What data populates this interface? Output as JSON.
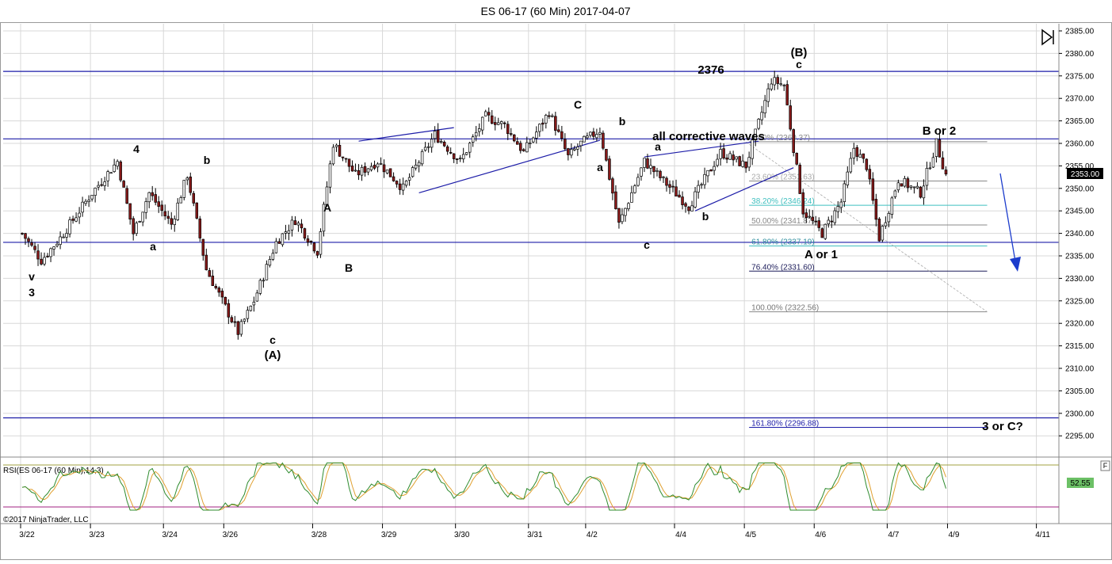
{
  "title": "ES 06-17 (60 Min)  2017-04-07",
  "last_price": "2353.00",
  "copyright": "©2017 NinjaTrader, LLC",
  "rsi_label": "RSI(ES 06-17 (60 Min),14,3)",
  "rsi_value": "52.55",
  "f_button": "F",
  "colors": {
    "up_candle": "#ffffff",
    "down_candle": "#8b1a1a",
    "trend_lines": "#1c1ca8",
    "rsi_line": "#2e8b2e",
    "rsi_signal": "#e0a030",
    "fib_cyan": "#3fbfbf",
    "rsi_upper": "#a0a040",
    "rsi_lower": "#a02080"
  },
  "chart_data": {
    "type": "candlestick",
    "timeframe": "60 Min",
    "ylim": [
      2290,
      2386
    ],
    "y_ticks": [
      "2385.00",
      "2380.00",
      "2375.00",
      "2370.00",
      "2365.00",
      "2360.00",
      "2355.00",
      "2350.00",
      "2345.00",
      "2340.00",
      "2335.00",
      "2330.00",
      "2325.00",
      "2320.00",
      "2315.00",
      "2310.00",
      "2305.00",
      "2300.00",
      "2295.00"
    ],
    "x_ticks": [
      {
        "label": "3/22",
        "i": 0
      },
      {
        "label": "3/23",
        "i": 22
      },
      {
        "label": "3/24",
        "i": 45
      },
      {
        "label": "3/26",
        "i": 64
      },
      {
        "label": "3/28",
        "i": 92
      },
      {
        "label": "3/29",
        "i": 114
      },
      {
        "label": "3/30",
        "i": 137
      },
      {
        "label": "3/31",
        "i": 160
      },
      {
        "label": "4/2",
        "i": 178
      },
      {
        "label": "4/4",
        "i": 206
      },
      {
        "label": "4/5",
        "i": 228
      },
      {
        "label": "4/6",
        "i": 250
      },
      {
        "label": "4/7",
        "i": 273
      },
      {
        "label": "4/9",
        "i": 292
      },
      {
        "label": "4/11",
        "i": 320
      }
    ],
    "anchors": [
      {
        "i": 0,
        "p": 2340
      },
      {
        "i": 6,
        "p": 2334
      },
      {
        "i": 12,
        "p": 2339
      },
      {
        "i": 22,
        "p": 2349
      },
      {
        "i": 30,
        "p": 2356
      },
      {
        "i": 35,
        "p": 2340
      },
      {
        "i": 40,
        "p": 2349
      },
      {
        "i": 47,
        "p": 2342
      },
      {
        "i": 52,
        "p": 2353
      },
      {
        "i": 58,
        "p": 2332
      },
      {
        "i": 63,
        "p": 2325
      },
      {
        "i": 68,
        "p": 2318
      },
      {
        "i": 73,
        "p": 2325
      },
      {
        "i": 80,
        "p": 2338
      },
      {
        "i": 86,
        "p": 2343
      },
      {
        "i": 93,
        "p": 2336
      },
      {
        "i": 98,
        "p": 2360
      },
      {
        "i": 105,
        "p": 2353
      },
      {
        "i": 112,
        "p": 2356
      },
      {
        "i": 120,
        "p": 2350
      },
      {
        "i": 130,
        "p": 2362
      },
      {
        "i": 138,
        "p": 2356
      },
      {
        "i": 146,
        "p": 2366
      },
      {
        "i": 152,
        "p": 2364
      },
      {
        "i": 158,
        "p": 2358
      },
      {
        "i": 166,
        "p": 2367
      },
      {
        "i": 172,
        "p": 2357
      },
      {
        "i": 176,
        "p": 2360
      },
      {
        "i": 182,
        "p": 2363
      },
      {
        "i": 188,
        "p": 2342
      },
      {
        "i": 196,
        "p": 2356
      },
      {
        "i": 210,
        "p": 2346
      },
      {
        "i": 220,
        "p": 2358
      },
      {
        "i": 228,
        "p": 2355
      },
      {
        "i": 236,
        "p": 2374
      },
      {
        "i": 240,
        "p": 2373
      },
      {
        "i": 246,
        "p": 2345
      },
      {
        "i": 252,
        "p": 2340
      },
      {
        "i": 258,
        "p": 2347
      },
      {
        "i": 262,
        "p": 2359
      },
      {
        "i": 266,
        "p": 2355
      },
      {
        "i": 270,
        "p": 2339
      },
      {
        "i": 276,
        "p": 2352
      },
      {
        "i": 283,
        "p": 2349
      },
      {
        "i": 288,
        "p": 2360
      },
      {
        "i": 291,
        "p": 2353
      }
    ],
    "horizontal_lines": [
      2376,
      2361,
      2338,
      2299
    ],
    "fib_levels": [
      {
        "pct": "0.00%",
        "price": "2360.37",
        "value": 2360.37
      },
      {
        "pct": "23.60%",
        "price": "2351.63",
        "value": 2351.63
      },
      {
        "pct": "38.20%",
        "price": "2346.24",
        "value": 2346.24
      },
      {
        "pct": "50.00%",
        "price": "2341.87",
        "value": 2341.87
      },
      {
        "pct": "61.80%",
        "price": "2337.19",
        "value": 2337.19
      },
      {
        "pct": "76.40%",
        "price": "2331.60",
        "value": 2331.6
      },
      {
        "pct": "100.00%",
        "price": "2322.56",
        "value": 2322.56
      },
      {
        "pct": "161.80%",
        "price": "2296.88",
        "value": 2296.88
      }
    ],
    "wave_labels": [
      {
        "text": "v",
        "i": 6,
        "p": 2330.5
      },
      {
        "text": "3",
        "i": 6,
        "p": 2327
      },
      {
        "text": "4",
        "i": 30,
        "p": 2358.5
      },
      {
        "text": "a",
        "i": 33,
        "p": 2338
      },
      {
        "text": "b",
        "i": 46,
        "p": 2356
      },
      {
        "text": "c",
        "i": 60,
        "p": 2314
      },
      {
        "text": "(A)",
        "i": 60,
        "p": 2310
      },
      {
        "text": "A",
        "i": 72,
        "p": 2345.5
      },
      {
        "text": "B",
        "i": 77,
        "p": 2333
      },
      {
        "text": "C",
        "i": 128,
        "p": 2367
      },
      {
        "text": "b",
        "i": 138,
        "p": 2363
      },
      {
        "text": "a",
        "i": 133,
        "p": 2354
      },
      {
        "text": "a",
        "i": 146,
        "p": 2356.5
      },
      {
        "text": "c",
        "i": 144,
        "p": 2334
      },
      {
        "text": "b",
        "i": 158,
        "p": 2342
      },
      {
        "text": "all corrective waves",
        "i": 144,
        "p": 2360.5
      },
      {
        "text": "2376",
        "i": 155,
        "p": 2375.5
      },
      {
        "text": "(B)",
        "i": 176,
        "p": 2379
      },
      {
        "text": "c",
        "i": 176,
        "p": 2376.5
      },
      {
        "text": "A or 1",
        "i": 179,
        "p": 2334.5
      },
      {
        "text": "B or 2",
        "i": 206,
        "p": 2362
      },
      {
        "text": "3 or C?",
        "i": 219,
        "p": 2296
      }
    ]
  }
}
